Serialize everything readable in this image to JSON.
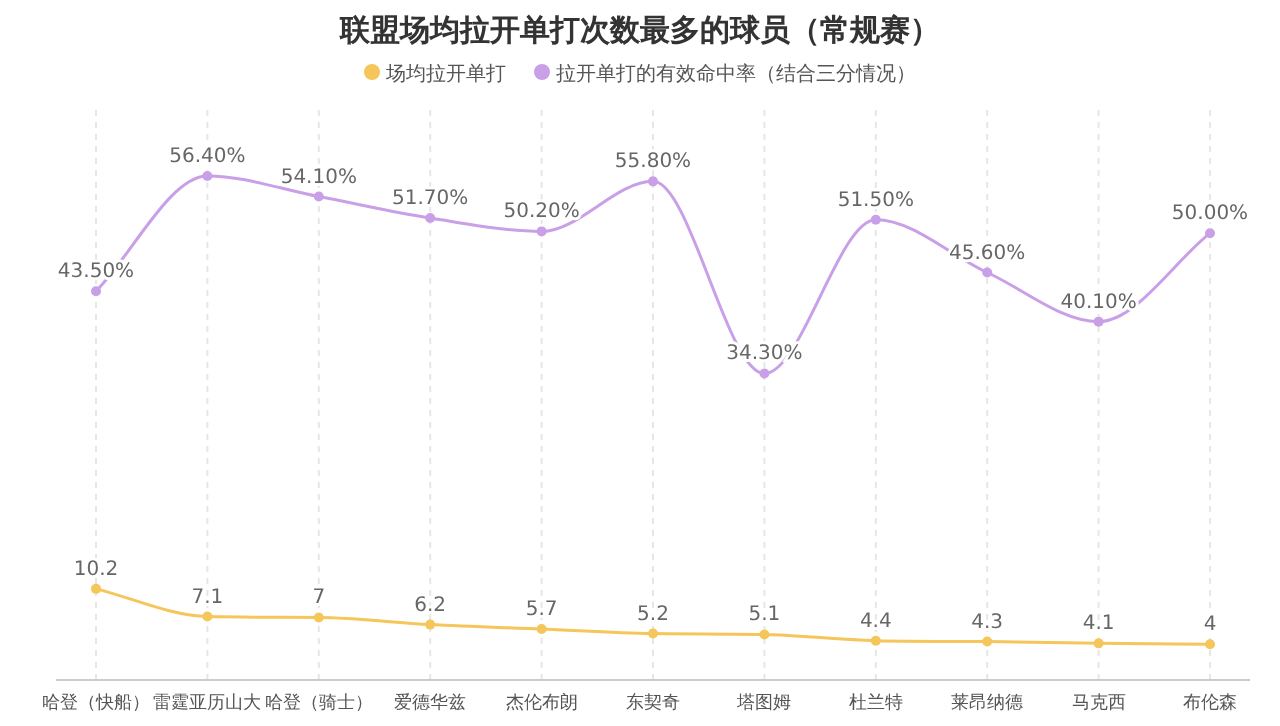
{
  "chart_data": {
    "type": "line",
    "title": "联盟场均拉开单打次数最多的球员（常规赛）",
    "categories": [
      "哈登（快船）",
      "雷霆亚历山大",
      "哈登（骑士）",
      "爱德华兹",
      "杰伦布朗",
      "东契奇",
      "塔图姆",
      "杜兰特",
      "莱昂纳德",
      "马克西",
      "布伦森"
    ],
    "series": [
      {
        "name": "场均拉开单打",
        "color": "#f5c65a",
        "values": [
          10.2,
          7.1,
          7,
          6.2,
          5.7,
          5.2,
          5.1,
          4.4,
          4.3,
          4.1,
          4
        ]
      },
      {
        "name": "拉开单打的有效命中率（结合三分情况）",
        "color": "#c9a0e8",
        "values": [
          43.5,
          56.4,
          54.1,
          51.7,
          50.2,
          55.8,
          34.3,
          51.5,
          45.6,
          40.1,
          50.0
        ],
        "value_labels": [
          "43.50%",
          "56.40%",
          "54.10%",
          "51.70%",
          "50.20%",
          "55.80%",
          "34.30%",
          "51.50%",
          "45.60%",
          "40.10%",
          "50.00%"
        ]
      }
    ],
    "data_labels": true,
    "grid": "x",
    "legend": "top",
    "marker": "circle"
  }
}
